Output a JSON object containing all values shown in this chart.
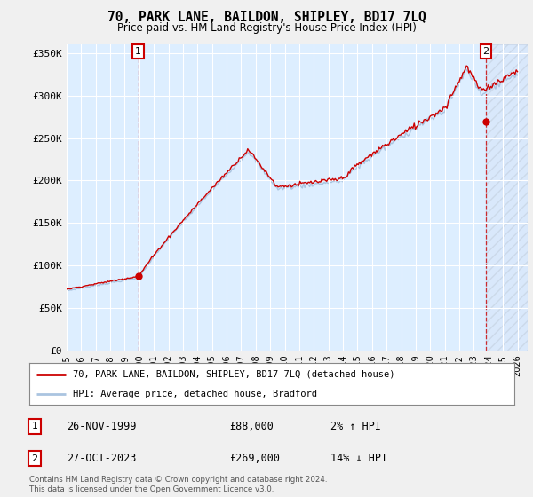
{
  "title": "70, PARK LANE, BAILDON, SHIPLEY, BD17 7LQ",
  "subtitle": "Price paid vs. HM Land Registry's House Price Index (HPI)",
  "ylabel_ticks": [
    "£0",
    "£50K",
    "£100K",
    "£150K",
    "£200K",
    "£250K",
    "£300K",
    "£350K"
  ],
  "ytick_values": [
    0,
    50000,
    100000,
    150000,
    200000,
    250000,
    300000,
    350000
  ],
  "ylim": [
    0,
    360000
  ],
  "xlim_start": 1995.3,
  "xlim_end": 2026.7,
  "hpi_color": "#aac4e0",
  "price_color": "#cc0000",
  "background_color": "#f0f0f0",
  "plot_bg_color": "#ddeeff",
  "grid_color": "#ffffff",
  "transaction1_year": 1999.92,
  "transaction1_price": 88000,
  "transaction2_year": 2023.83,
  "transaction2_price": 269000,
  "legend_label1": "70, PARK LANE, BAILDON, SHIPLEY, BD17 7LQ (detached house)",
  "legend_label2": "HPI: Average price, detached house, Bradford",
  "footnote": "Contains HM Land Registry data © Crown copyright and database right 2024.\nThis data is licensed under the Open Government Licence v3.0.",
  "xtick_years": [
    1995,
    1996,
    1997,
    1998,
    1999,
    2000,
    2001,
    2002,
    2003,
    2004,
    2005,
    2006,
    2007,
    2008,
    2009,
    2010,
    2011,
    2012,
    2013,
    2014,
    2015,
    2016,
    2017,
    2018,
    2019,
    2020,
    2021,
    2022,
    2023,
    2024,
    2025,
    2026
  ],
  "table_row1": {
    "label": "1",
    "date": "26-NOV-1999",
    "price": "£88,000",
    "hpi": "2% ↑ HPI"
  },
  "table_row2": {
    "label": "2",
    "date": "27-OCT-2023",
    "price": "£269,000",
    "hpi": "14% ↓ HPI"
  }
}
